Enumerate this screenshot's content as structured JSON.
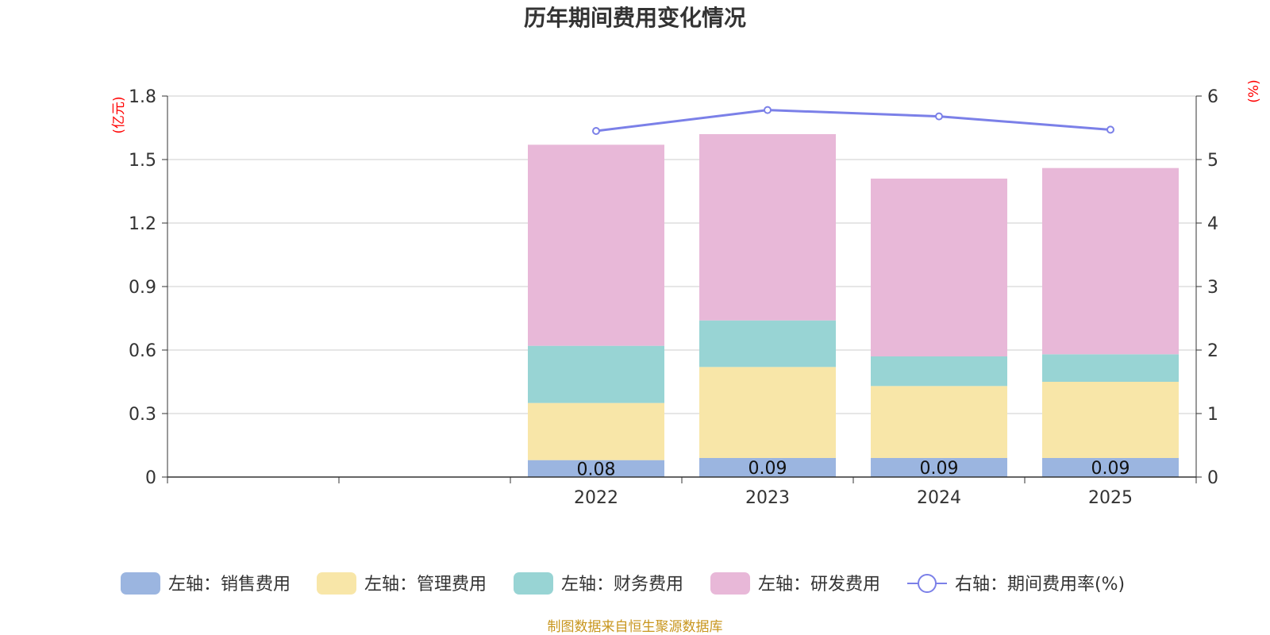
{
  "chart_data": {
    "type": "bar",
    "title": "历年期间费用变化情况",
    "categories": [
      "",
      "",
      "2022",
      "2023",
      "2024",
      "2025"
    ],
    "left_axis": {
      "unit": "(亿元)",
      "ylim": [
        0,
        1.8
      ],
      "ticks": [
        "0",
        "0.3",
        "0.6",
        "0.9",
        "1.2",
        "1.5",
        "1.8"
      ]
    },
    "right_axis": {
      "unit": "(%)",
      "ylim": [
        0,
        6
      ],
      "ticks": [
        "0",
        "1",
        "2",
        "3",
        "4",
        "5",
        "6"
      ]
    },
    "series": [
      {
        "name": "左轴：销售费用",
        "kind": "bar",
        "color": "#9bb5e0",
        "values": [
          null,
          null,
          0.08,
          0.09,
          0.09,
          0.09
        ],
        "labels": [
          "",
          "",
          "0.08",
          "0.09",
          "0.09",
          "0.09"
        ]
      },
      {
        "name": "左轴：管理费用",
        "kind": "bar",
        "color": "#f8e6a8",
        "values": [
          null,
          null,
          0.27,
          0.43,
          0.34,
          0.36
        ]
      },
      {
        "name": "左轴：财务费用",
        "kind": "bar",
        "color": "#98d4d4",
        "values": [
          null,
          null,
          0.27,
          0.22,
          0.14,
          0.13
        ]
      },
      {
        "name": "左轴：研发费用",
        "kind": "bar",
        "color": "#e8b8d8",
        "values": [
          null,
          null,
          0.95,
          0.88,
          0.84,
          0.88
        ]
      },
      {
        "name": "右轴：期间费用率(%)",
        "kind": "line",
        "axis": "right",
        "color": "#7b80e8",
        "values": [
          null,
          null,
          5.45,
          5.78,
          5.68,
          5.47
        ]
      }
    ],
    "grid": true,
    "legend_position": "bottom",
    "source": "制图数据来自恒生聚源数据库"
  }
}
